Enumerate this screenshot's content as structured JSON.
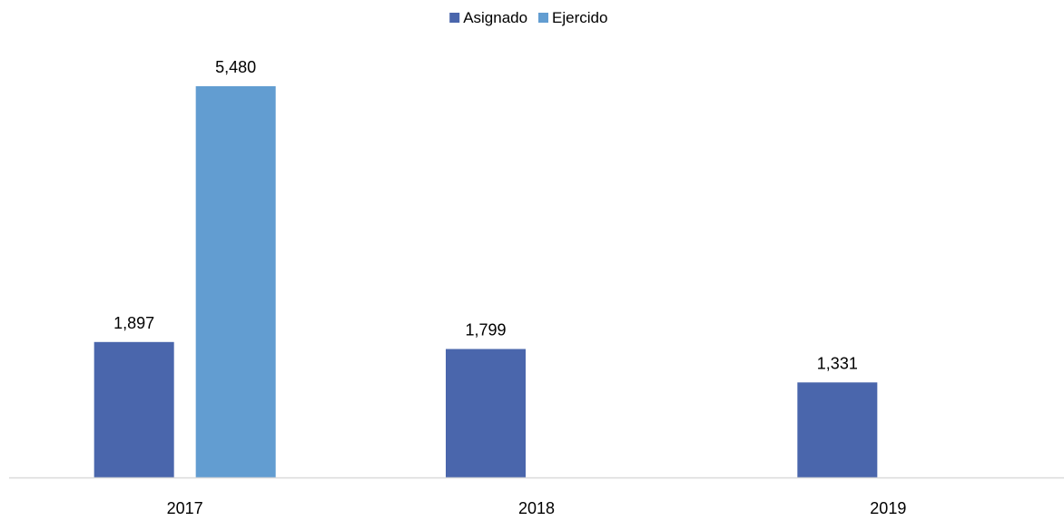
{
  "chart_data": {
    "type": "bar",
    "categories": [
      "2017",
      "2018",
      "2019"
    ],
    "series": [
      {
        "name": "Asignado",
        "values": [
          1897,
          1799,
          1331
        ],
        "color": "#4A66AC"
      },
      {
        "name": "Ejercido",
        "values": [
          5480,
          null,
          null
        ],
        "color": "#629DD1"
      }
    ],
    "data_labels": [
      [
        "1,897",
        "1,799",
        "1,331"
      ],
      [
        "5,480",
        "",
        ""
      ]
    ],
    "ylim": [
      0,
      5800
    ],
    "grid": false,
    "legend_position": "top-center",
    "xlabel": "",
    "ylabel": "",
    "title": ""
  }
}
